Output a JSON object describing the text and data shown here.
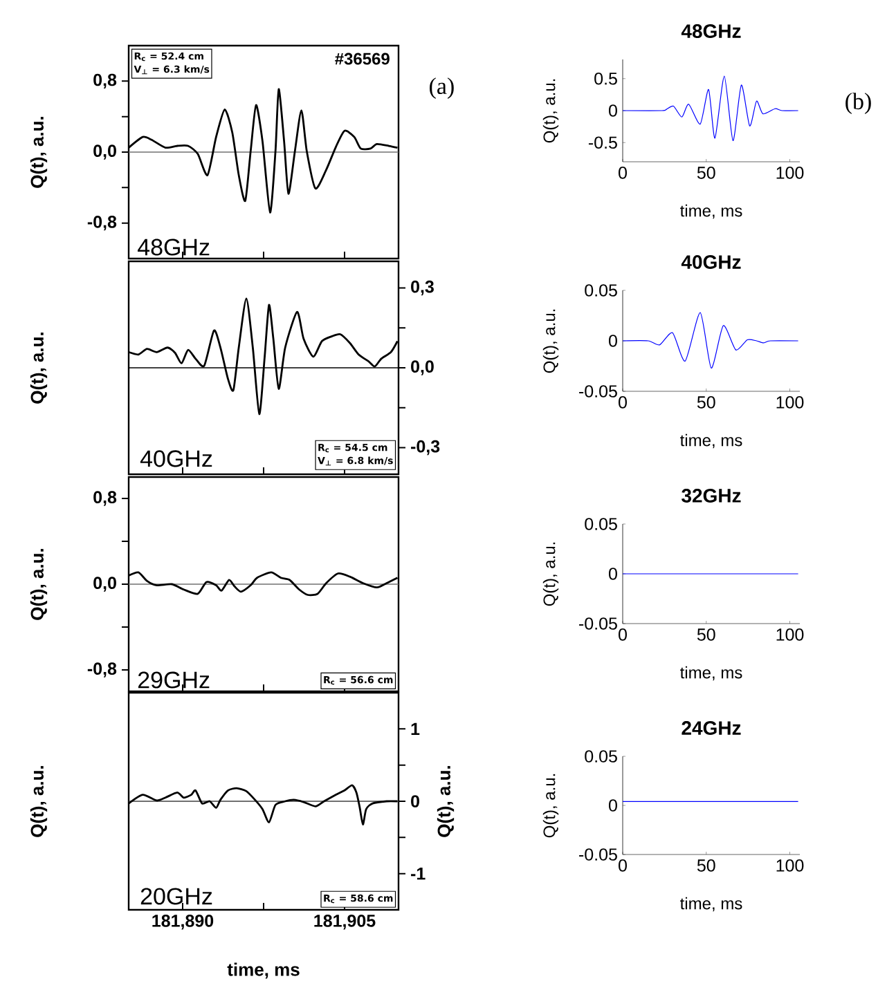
{
  "chart_data": [
    {
      "type": "line",
      "ylabel": "Q(t), a.u.",
      "annotations": [
        "R$_{c}$ = 52.4 cm",
        "V$_{⊥}$ = 6.3 km/s",
        "#36569",
        "48GHz",
        "(a)"
      ],
      "tick_labels": "y",
      "xlim": [
        181885,
        181910
      ],
      "xticks": [
        {
          "value": 181890,
          "label": null
        },
        {
          "value": 181897.5,
          "label": null
        },
        {
          "value": 181905,
          "label": null
        }
      ],
      "ylim": [
        -1.2,
        1.2
      ],
      "yticks": [
        {
          "value": -0.8,
          "label": "-0,8"
        },
        {
          "value": -0.4,
          "label": null
        },
        {
          "value": 0,
          "label": "0,0"
        },
        {
          "value": 0.4,
          "label": null
        },
        {
          "value": 0.8,
          "label": "0,8"
        }
      ],
      "ref_lines": [
        {
          "axis": "y",
          "value": 0,
          "color": "#707070"
        }
      ],
      "x": [
        181885.0,
        181886.3,
        181887.1,
        181888.4,
        181889.5,
        181890.5,
        181891.4,
        181892.3,
        181893.1,
        181893.9,
        181894.6,
        181895.2,
        181895.8,
        181896.3,
        181896.8,
        181897.4,
        181898.1,
        181898.6,
        181898.9,
        181899.4,
        181899.8,
        181900.4,
        181901.0,
        181901.5,
        181902.3,
        181903.3,
        181904.2,
        181905.0,
        181905.9,
        181906.5,
        181907.4,
        181908.0,
        181909.1,
        181909.9
      ],
      "series": [
        {
          "color": "#000000",
          "values": [
            0.05,
            0.17,
            0.14,
            0.05,
            0.07,
            0.07,
            -0.02,
            -0.26,
            0.17,
            0.48,
            0.22,
            -0.26,
            -0.55,
            0.01,
            0.53,
            0.12,
            -0.68,
            0.01,
            0.71,
            0.12,
            -0.47,
            0.01,
            0.47,
            0.01,
            -0.41,
            -0.2,
            0.06,
            0.24,
            0.17,
            0.04,
            0.04,
            0.09,
            0.07,
            0.05
          ]
        }
      ]
    },
    {
      "type": "line",
      "ylabel": "Q(t), a.u.",
      "annotations": [
        "R$_{c}$ = 54.5 cm",
        "V$_{⊥}$ = 6.8 km/s",
        "40GHz"
      ],
      "tick_labels": "y",
      "xlim": [
        181885,
        181910
      ],
      "xticks": [
        {
          "value": 181890,
          "label": null
        },
        {
          "value": 181897.5,
          "label": null
        },
        {
          "value": 181905,
          "label": null
        }
      ],
      "y2lim": [
        -0.4,
        0.4
      ],
      "y2ticks": [
        {
          "value": -0.3,
          "label": "-0,3"
        },
        {
          "value": -0.15,
          "label": null
        },
        {
          "value": 0,
          "label": "0,0"
        },
        {
          "value": 0.15,
          "label": null
        },
        {
          "value": 0.3,
          "label": "0,3"
        }
      ],
      "ref_lines": [
        {
          "axis": "y2",
          "value": 0,
          "color": "#000000"
        }
      ],
      "x": [
        181885.0,
        181885.9,
        181886.7,
        181887.6,
        181888.6,
        181889.3,
        181889.9,
        181890.5,
        181891.2,
        181892.0,
        181892.9,
        181893.5,
        181894.2,
        181894.7,
        181895.2,
        181895.9,
        181896.5,
        181897.1,
        181897.6,
        181898.0,
        181898.4,
        181898.9,
        181899.5,
        181900.6,
        181901.2,
        181902.1,
        181902.9,
        181903.8,
        181904.6,
        181905.5,
        181906.3,
        181907.2,
        181907.8,
        181908.4,
        181909.3,
        181909.9
      ],
      "series": [
        {
          "color": "#000000",
          "axis": "y2",
          "values": [
            0.059,
            0.05,
            0.071,
            0.059,
            0.076,
            0.056,
            0.017,
            0.067,
            0.034,
            0.008,
            0.14,
            0.076,
            -0.042,
            -0.084,
            0.076,
            0.26,
            0.076,
            -0.174,
            0.042,
            0.236,
            0.11,
            -0.079,
            0.076,
            0.21,
            0.11,
            0.042,
            0.1,
            0.118,
            0.126,
            0.093,
            0.05,
            0.025,
            0.005,
            0.034,
            0.059,
            0.1
          ]
        }
      ]
    },
    {
      "type": "line",
      "ylabel": "Q(t), a.u.",
      "annotations": [
        "29GHz",
        "R$_{c}$ = 56.6 cm"
      ],
      "tick_labels": "y",
      "xlim": [
        181885,
        181910
      ],
      "xticks": [
        {
          "value": 181890,
          "label": null
        },
        {
          "value": 181897.5,
          "label": null
        },
        {
          "value": 181905,
          "label": null
        }
      ],
      "ylim": [
        -1,
        1
      ],
      "yticks": [
        {
          "value": -0.8,
          "label": "-0,8"
        },
        {
          "value": -0.4,
          "label": null
        },
        {
          "value": 0,
          "label": "0,0"
        },
        {
          "value": 0.4,
          "label": null
        },
        {
          "value": 0.8,
          "label": "0,8"
        }
      ],
      "ref_lines": [
        {
          "axis": "y",
          "value": 0,
          "color": "#707070"
        }
      ],
      "x": [
        181885.0,
        181885.9,
        181886.7,
        181887.6,
        181889.0,
        181890.1,
        181891.4,
        181892.2,
        181893.1,
        181893.6,
        181894.3,
        181894.8,
        181895.4,
        181896.3,
        181896.9,
        181898.2,
        181899.1,
        181899.9,
        181900.8,
        181901.6,
        181902.5,
        181903.3,
        181904.4,
        181905.5,
        181906.7,
        181908.0,
        181908.9,
        181909.9
      ],
      "series": [
        {
          "color": "#000000",
          "values": [
            0.08,
            0.11,
            0.03,
            -0.01,
            0,
            -0.05,
            -0.09,
            0.02,
            -0.01,
            -0.06,
            0.04,
            -0.02,
            -0.07,
            -0.01,
            0.06,
            0.11,
            0.06,
            0.04,
            -0.05,
            -0.1,
            -0.09,
            0.01,
            0.1,
            0.07,
            0.01,
            -0.03,
            0.01,
            0.06
          ]
        }
      ]
    },
    {
      "type": "line",
      "ylabel": "Q(t), a.u.",
      "y2label": "Q(t), a.u.",
      "xlabel": "time, ms",
      "annotations": [
        "20GHz",
        "R$_{c}$ = 58.6 cm"
      ],
      "xlim": [
        181885,
        181910
      ],
      "xticks": [
        {
          "value": 181890,
          "label": "181,890"
        },
        {
          "value": 181897.5,
          "label": null
        },
        {
          "value": 181905,
          "label": "181,905"
        }
      ],
      "y2lim": [
        -1.5,
        1.5
      ],
      "y2ticks": [
        -1,
        {
          "value": -0.5,
          "label": null
        },
        0,
        {
          "value": 0.5,
          "label": null
        },
        1
      ],
      "ref_lines": [
        {
          "axis": "y2",
          "value": 0,
          "color": "#404040"
        }
      ],
      "x": [
        181885.0,
        181886.3,
        181887.6,
        181888.4,
        181889.5,
        181890.1,
        181890.8,
        181891.2,
        181891.8,
        181892.5,
        181893.1,
        181893.5,
        181894.2,
        181895.0,
        181895.9,
        181896.7,
        181897.4,
        181898.0,
        181898.6,
        181899.5,
        181900.3,
        181901.2,
        181902.3,
        181903.1,
        181904.2,
        181905.0,
        181905.7,
        181906.1,
        181906.4,
        181906.7,
        181907.0,
        181907.6,
        181908.9,
        181909.9
      ],
      "series": [
        {
          "color": "#000000",
          "axis": "y2",
          "values": [
            -0.03,
            0.09,
            0.01,
            0.05,
            0.12,
            0.05,
            0.09,
            0.15,
            -0.03,
            0,
            -0.09,
            0.02,
            0.15,
            0.18,
            0.14,
            0.02,
            -0.11,
            -0.29,
            -0.05,
            0,
            0.02,
            -0.01,
            -0.07,
            0,
            0.09,
            0.15,
            0.22,
            0.12,
            -0.08,
            -0.32,
            -0.11,
            -0.03,
            0,
            0
          ]
        }
      ]
    },
    {
      "type": "line",
      "title": "48GHz",
      "xlabel": "time, ms",
      "ylabel": "Q(t), a.u.",
      "annotations": [
        "(b)"
      ],
      "xlim": [
        0,
        106
      ],
      "xticks": [
        0,
        50,
        100
      ],
      "ylim": [
        -0.8,
        0.8
      ],
      "yticks": [
        -0.5,
        0,
        0.5
      ],
      "x": [
        0,
        23.5,
        26.2,
        30.4,
        35.4,
        39.5,
        46.4,
        51.4,
        55.2,
        60.8,
        66.0,
        71.0,
        76.0,
        80.1,
        83.9,
        91.2,
        95.3,
        105
      ],
      "series": [
        {
          "color": "#0000ff",
          "values": [
            0,
            0,
            0.02,
            0.07,
            -0.1,
            0.1,
            -0.21,
            0.33,
            -0.43,
            0.54,
            -0.47,
            0.4,
            -0.24,
            0.15,
            -0.05,
            0.03,
            0,
            0
          ]
        }
      ]
    },
    {
      "type": "line",
      "title": "40GHz",
      "xlabel": "time, ms",
      "ylabel": "Q(t), a.u.",
      "xlim": [
        0,
        106
      ],
      "xticks": [
        0,
        50,
        100
      ],
      "ylim": [
        -0.05,
        0.05
      ],
      "yticks": [
        -0.05,
        0,
        0.05
      ],
      "x": [
        0,
        15.2,
        22.1,
        29.8,
        37.4,
        46.4,
        53.0,
        60.2,
        67.7,
        74.6,
        80.1,
        84.3,
        88.4,
        105
      ],
      "series": [
        {
          "color": "#0000ff",
          "values": [
            0,
            0,
            -0.004,
            0.008,
            -0.02,
            0.028,
            -0.027,
            0.015,
            -0.009,
            0.001,
            0,
            -0.002,
            0,
            0
          ]
        }
      ]
    },
    {
      "type": "line",
      "title": "32GHz",
      "xlabel": "time, ms",
      "ylabel": "Q(t), a.u.",
      "xlim": [
        0,
        106
      ],
      "xticks": [
        0,
        50,
        100
      ],
      "ylim": [
        -0.05,
        0.05
      ],
      "yticks": [
        -0.05,
        0,
        0.05
      ],
      "x": [
        0,
        105
      ],
      "series": [
        {
          "color": "#0000ff",
          "values": [
            0,
            0
          ]
        }
      ]
    },
    {
      "type": "line",
      "title": "24GHz",
      "xlabel": "time, ms",
      "ylabel": "Q(t), a.u.",
      "xlim": [
        0,
        106
      ],
      "xticks": [
        0,
        50,
        100
      ],
      "ylim": [
        -0.05,
        0.05
      ],
      "yticks": [
        -0.05,
        0,
        0.05
      ],
      "x": [
        0,
        105
      ],
      "series": [
        {
          "color": "#0000ff",
          "values": [
            0.004,
            0.004
          ]
        }
      ]
    }
  ]
}
